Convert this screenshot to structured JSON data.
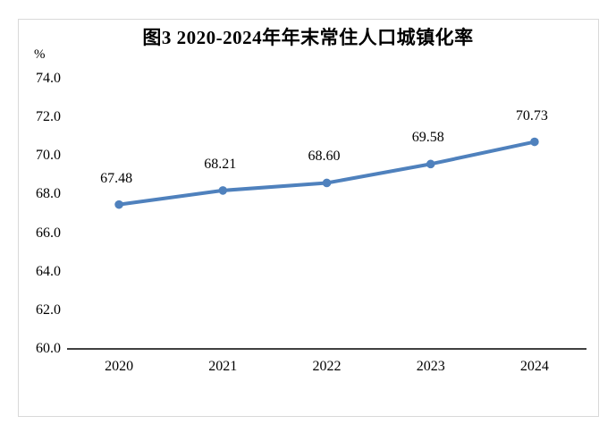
{
  "chart_data": {
    "type": "line",
    "title": "图3 2020-2024年年末常住人口城镇化率",
    "unit_label": "%",
    "categories": [
      "2020",
      "2021",
      "2022",
      "2023",
      "2024"
    ],
    "values": [
      67.48,
      68.21,
      68.6,
      69.58,
      70.73
    ],
    "data_labels": [
      "67.48",
      "68.21",
      "68.60",
      "69.58",
      "70.73"
    ],
    "yticks": [
      "74.0",
      "72.0",
      "70.0",
      "68.0",
      "66.0",
      "64.0",
      "62.0",
      "60.0"
    ],
    "ylim": [
      60.0,
      74.0
    ],
    "xlabel": "",
    "ylabel": "%",
    "grid": false,
    "legend": false,
    "colors": {
      "line": "#4f81bd",
      "marker": "#4f81bd",
      "axis": "#000000",
      "text": "#000000",
      "frame_border": "#d9d9d9",
      "background": "#ffffff"
    }
  }
}
